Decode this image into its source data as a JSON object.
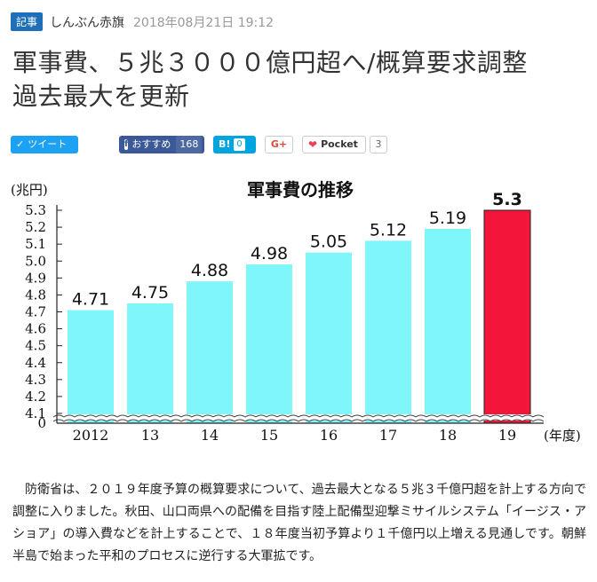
{
  "meta": {
    "badge": "記事",
    "source": "しんぶん赤旗",
    "date": "2018年08月21日 19:12"
  },
  "headline": {
    "line1": "軍事費、５兆３０００億円超へ/概算要求調整",
    "line2": "過去最大を更新"
  },
  "share": {
    "tweet_label": "ツイート",
    "tweet_icon": "twitter-bird-icon",
    "facebook_label": "おすすめ",
    "facebook_count": "168",
    "hatena_label": "B!",
    "hatena_count": "0",
    "gplus_label": "G+",
    "pocket_label": "Pocket",
    "pocket_count": "3"
  },
  "chart_data": {
    "type": "bar",
    "title": "軍事費の推移",
    "ylabel": "(兆円)",
    "xlabel": "(年度)",
    "categories": [
      "2012",
      "13",
      "14",
      "15",
      "16",
      "17",
      "18",
      "19"
    ],
    "values": [
      4.71,
      4.75,
      4.88,
      4.98,
      5.05,
      5.12,
      5.19,
      5.3
    ],
    "value_labels": [
      "4.71",
      "4.75",
      "4.88",
      "4.98",
      "5.05",
      "5.12",
      "5.19",
      "5.3"
    ],
    "y_ticks": [
      "5.3",
      "5.2",
      "5.1",
      "5.0",
      "4.9",
      "4.8",
      "4.7",
      "4.6",
      "4.5",
      "4.4",
      "4.3",
      "4.2",
      "4.1",
      "0"
    ],
    "ylim": [
      4.1,
      5.3
    ],
    "axis_break": true,
    "colors": {
      "normal": "#7ff6fa",
      "highlight": "#f4163a"
    }
  },
  "article": {
    "paragraph": "防衛省は、２０１９年度予算の概算要求について、過去最大となる５兆３千億円超を計上する方向で調整に入りました。秋田、山口両県への配備を目指す陸上配備型迎撃ミサイルシステム「イージス・アショア」の導入費などを計上することで、１８年度当初予算より１千億円以上増える見通しです。朝鮮半島で始まった平和のプロセスに逆行する大軍拡です。"
  }
}
